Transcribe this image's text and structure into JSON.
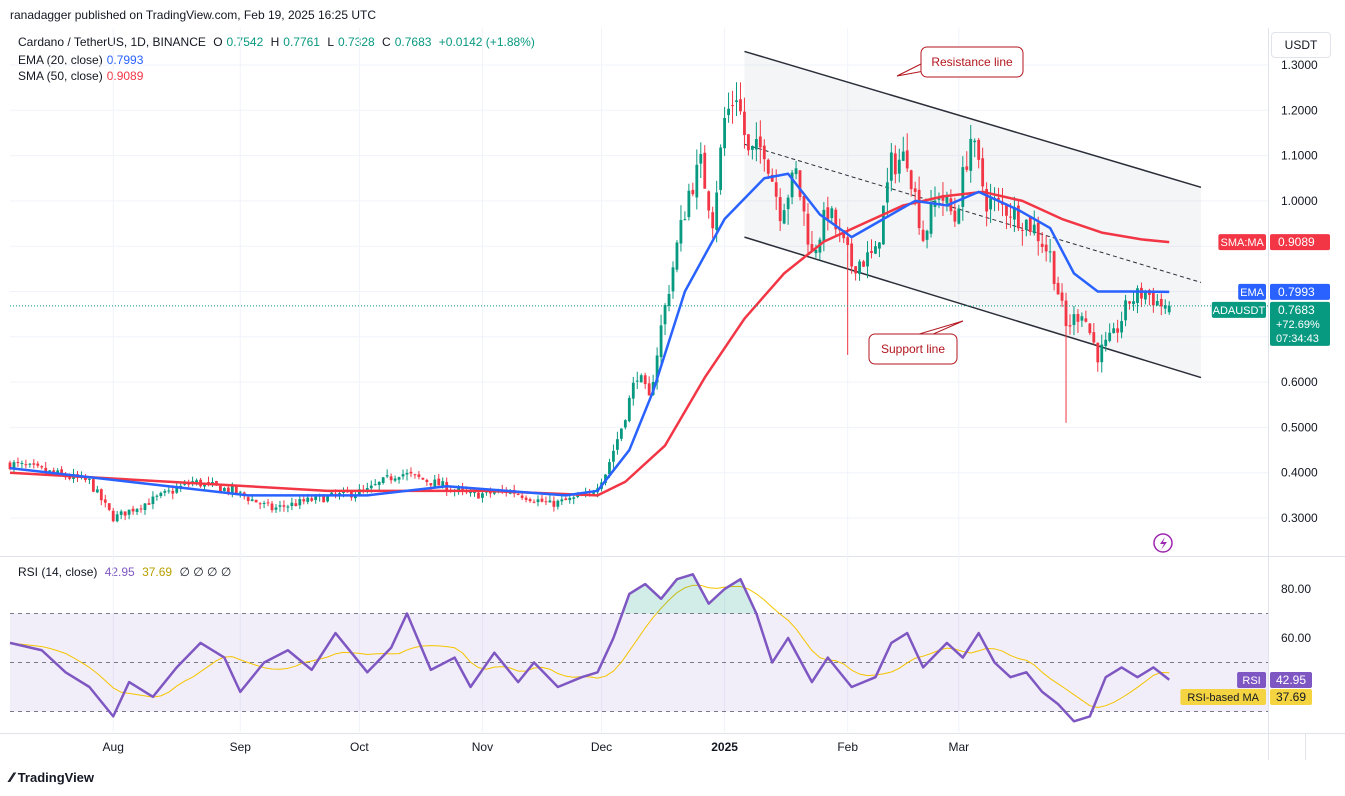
{
  "publisher": "ranadagger published on TradingView.com, Feb 19, 2025 16:25 UTC",
  "header": {
    "symbol": "Cardano / TetherUS, 1D, BINANCE",
    "o_label": "O",
    "o": "0.7542",
    "h_label": "H",
    "h": "0.7761",
    "l_label": "L",
    "l": "0.7328",
    "c_label": "C",
    "c": "0.7683",
    "change": "+0.0142 (+1.88%)",
    "ema_label": "EMA (20, close)",
    "ema_value": "0.7993",
    "sma_label": "SMA (50, close)",
    "sma_value": "0.9089",
    "rsi_label": "RSI (14, close)",
    "rsi_value": "42.95",
    "rsi_ma_value": "37.69",
    "rsi_extra": "∅ ∅ ∅ ∅"
  },
  "currency": "USDT",
  "footer": {
    "brand": "TradingView"
  },
  "colors": {
    "up": "#089981",
    "down": "#f23645",
    "ema": "#2962ff",
    "sma": "#f23645",
    "rsi": "#7e57c2",
    "rsi_ma": "#f5d442",
    "annotation": "#b2161e"
  },
  "chart_data": [
    {
      "type": "candlestick",
      "title": "Cardano / TetherUS, 1D, BINANCE",
      "ylim": [
        0.26,
        1.39
      ],
      "x_ticks": [
        "Aug",
        "Sep",
        "Oct",
        "Nov",
        "Dec",
        "2025",
        "Feb",
        "Mar"
      ],
      "y_ticks": [
        "1.3000",
        "1.2000",
        "1.1000",
        "1.0000",
        "0.6000",
        "0.5000",
        "0.4000",
        "0.3000"
      ],
      "close_path": [
        [
          0,
          0.42
        ],
        [
          10,
          0.4
        ],
        [
          20,
          0.38
        ],
        [
          26,
          0.3
        ],
        [
          36,
          0.34
        ],
        [
          46,
          0.38
        ],
        [
          56,
          0.36
        ],
        [
          66,
          0.32
        ],
        [
          76,
          0.34
        ],
        [
          90,
          0.36
        ],
        [
          98,
          0.4
        ],
        [
          106,
          0.38
        ],
        [
          116,
          0.35
        ],
        [
          126,
          0.36
        ],
        [
          136,
          0.33
        ],
        [
          146,
          0.35
        ],
        [
          150,
          0.4
        ],
        [
          154,
          0.5
        ],
        [
          158,
          0.62
        ],
        [
          161,
          0.56
        ],
        [
          164,
          0.72
        ],
        [
          168,
          0.9
        ],
        [
          171,
          1.02
        ],
        [
          174,
          1.08
        ],
        [
          177,
          0.96
        ],
        [
          180,
          1.18
        ],
        [
          183,
          1.24
        ],
        [
          186,
          1.1
        ],
        [
          190,
          1.12
        ],
        [
          194,
          0.98
        ],
        [
          198,
          1.06
        ],
        [
          202,
          0.88
        ],
        [
          206,
          0.98
        ],
        [
          212,
          0.86
        ],
        [
          218,
          0.88
        ],
        [
          222,
          1.08
        ],
        [
          226,
          1.1
        ],
        [
          230,
          0.92
        ],
        [
          234,
          1.02
        ],
        [
          238,
          0.96
        ],
        [
          242,
          1.14
        ],
        [
          246,
          1.0
        ],
        [
          252,
          0.98
        ],
        [
          258,
          0.94
        ],
        [
          262,
          0.88
        ],
        [
          266,
          0.72
        ],
        [
          270,
          0.76
        ],
        [
          274,
          0.66
        ],
        [
          278,
          0.7
        ],
        [
          282,
          0.78
        ],
        [
          286,
          0.8
        ],
        [
          290,
          0.77
        ],
        [
          292,
          0.77
        ]
      ],
      "series": [
        {
          "name": "EMA (20, close)",
          "last": 0.7993,
          "path": [
            [
              0,
              0.41
            ],
            [
              30,
              0.38
            ],
            [
              60,
              0.35
            ],
            [
              90,
              0.35
            ],
            [
              110,
              0.37
            ],
            [
              140,
              0.35
            ],
            [
              148,
              0.36
            ],
            [
              156,
              0.45
            ],
            [
              162,
              0.58
            ],
            [
              170,
              0.8
            ],
            [
              180,
              0.96
            ],
            [
              190,
              1.05
            ],
            [
              196,
              1.06
            ],
            [
              204,
              0.97
            ],
            [
              212,
              0.92
            ],
            [
              220,
              0.96
            ],
            [
              228,
              1.0
            ],
            [
              236,
              0.99
            ],
            [
              244,
              1.02
            ],
            [
              254,
              0.98
            ],
            [
              262,
              0.94
            ],
            [
              268,
              0.84
            ],
            [
              274,
              0.8
            ],
            [
              282,
              0.8
            ],
            [
              292,
              0.7993
            ]
          ]
        },
        {
          "name": "SMA (50, close)",
          "last": 0.9089,
          "path": [
            [
              0,
              0.4
            ],
            [
              40,
              0.38
            ],
            [
              80,
              0.36
            ],
            [
              120,
              0.36
            ],
            [
              148,
              0.35
            ],
            [
              155,
              0.38
            ],
            [
              165,
              0.46
            ],
            [
              175,
              0.61
            ],
            [
              185,
              0.74
            ],
            [
              195,
              0.84
            ],
            [
              205,
              0.91
            ],
            [
              215,
              0.95
            ],
            [
              225,
              0.99
            ],
            [
              235,
              1.01
            ],
            [
              245,
              1.02
            ],
            [
              255,
              1.0
            ],
            [
              265,
              0.96
            ],
            [
              275,
              0.93
            ],
            [
              285,
              0.915
            ],
            [
              292,
              0.9089
            ]
          ]
        }
      ],
      "price_labels": [
        {
          "name": "SMA:MA",
          "value": "0.9089"
        },
        {
          "name": "EMA",
          "value": "0.7993"
        },
        {
          "name": "ADAUSDT",
          "value": "0.7683",
          "change": "+72.69%",
          "countdown": "07:34:43"
        }
      ],
      "annotations": [
        {
          "text": "Resistance line",
          "from": [
            185,
            1.33
          ],
          "to": [
            300,
            1.03
          ]
        },
        {
          "text": "Support line",
          "from": [
            185,
            0.92
          ],
          "to": [
            300,
            0.61
          ]
        }
      ]
    },
    {
      "type": "line",
      "title": "RSI (14, close)",
      "ylim": [
        18,
        96
      ],
      "y_ticks": [
        "80.00",
        "60.00"
      ],
      "bands": {
        "upper": 70,
        "middle": 50,
        "lower": 30
      },
      "series": [
        {
          "name": "RSI",
          "last": 42.95,
          "values": [
            [
              0,
              58
            ],
            [
              8,
              55
            ],
            [
              14,
              46
            ],
            [
              20,
              40
            ],
            [
              26,
              28
            ],
            [
              30,
              42
            ],
            [
              36,
              36
            ],
            [
              42,
              48
            ],
            [
              48,
              58
            ],
            [
              54,
              52
            ],
            [
              58,
              38
            ],
            [
              64,
              50
            ],
            [
              70,
              55
            ],
            [
              76,
              47
            ],
            [
              82,
              62
            ],
            [
              86,
              54
            ],
            [
              90,
              46
            ],
            [
              96,
              56
            ],
            [
              100,
              70
            ],
            [
              106,
              47
            ],
            [
              112,
              52
            ],
            [
              116,
              40
            ],
            [
              122,
              54
            ],
            [
              128,
              42
            ],
            [
              132,
              50
            ],
            [
              138,
              40
            ],
            [
              144,
              44
            ],
            [
              148,
              46
            ],
            [
              152,
              60
            ],
            [
              156,
              78
            ],
            [
              160,
              82
            ],
            [
              164,
              76
            ],
            [
              168,
              84
            ],
            [
              172,
              86
            ],
            [
              176,
              74
            ],
            [
              180,
              80
            ],
            [
              184,
              84
            ],
            [
              188,
              70
            ],
            [
              192,
              50
            ],
            [
              196,
              60
            ],
            [
              202,
              42
            ],
            [
              206,
              52
            ],
            [
              212,
              40
            ],
            [
              218,
              44
            ],
            [
              222,
              58
            ],
            [
              226,
              62
            ],
            [
              230,
              48
            ],
            [
              236,
              58
            ],
            [
              240,
              52
            ],
            [
              244,
              62
            ],
            [
              248,
              50
            ],
            [
              252,
              44
            ],
            [
              256,
              46
            ],
            [
              260,
              38
            ],
            [
              264,
              33
            ],
            [
              268,
              26
            ],
            [
              272,
              28
            ],
            [
              276,
              44
            ],
            [
              280,
              48
            ],
            [
              284,
              44
            ],
            [
              288,
              48
            ],
            [
              292,
              42.95
            ]
          ]
        },
        {
          "name": "RSI-based MA",
          "last": 37.69
        }
      ]
    }
  ]
}
